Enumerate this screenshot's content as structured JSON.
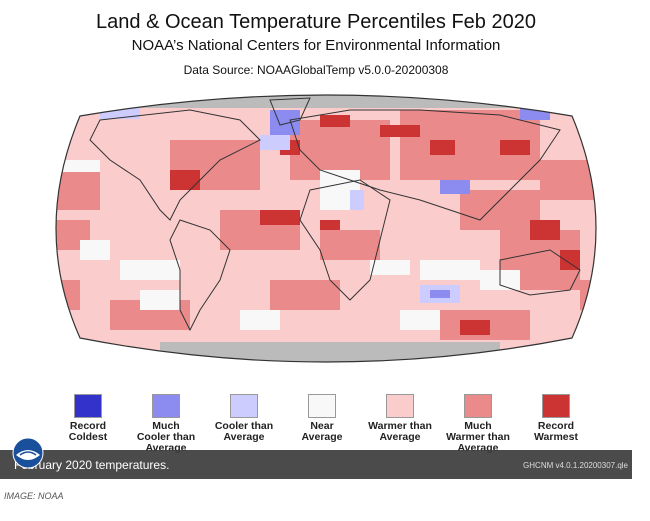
{
  "header": {
    "title": "Land & Ocean Temperature Percentiles Feb 2020",
    "subtitle": "NOAA’s National Centers for Environmental Information",
    "source": "Data Source: NOAAGlobalTemp v5.0.0-20200308"
  },
  "legend": [
    {
      "label": "Record\nColdest",
      "color": "#3333cc"
    },
    {
      "label": "Much\nCooler than\nAverage",
      "color": "#8c8cf0"
    },
    {
      "label": "Cooler than\nAverage",
      "color": "#ccccff"
    },
    {
      "label": "Near\nAverage",
      "color": "#f8f8f8"
    },
    {
      "label": "Warmer than\nAverage",
      "color": "#fbcccc"
    },
    {
      "label": "Much\nWarmer than\nAverage",
      "color": "#ea8a8a"
    },
    {
      "label": "Record\nWarmest",
      "color": "#cc3333"
    }
  ],
  "map": {
    "projection": "Robinson",
    "no_data_color": "#bbbbbb",
    "background_fill": "#fbcccc"
  },
  "caption": {
    "text": "February 2020 temperatures.",
    "version": "GHCNM v4.0.1.20200307.qle"
  },
  "logo": {
    "icon": "noaa-logo-icon"
  },
  "credit": "IMAGE: NOAA"
}
